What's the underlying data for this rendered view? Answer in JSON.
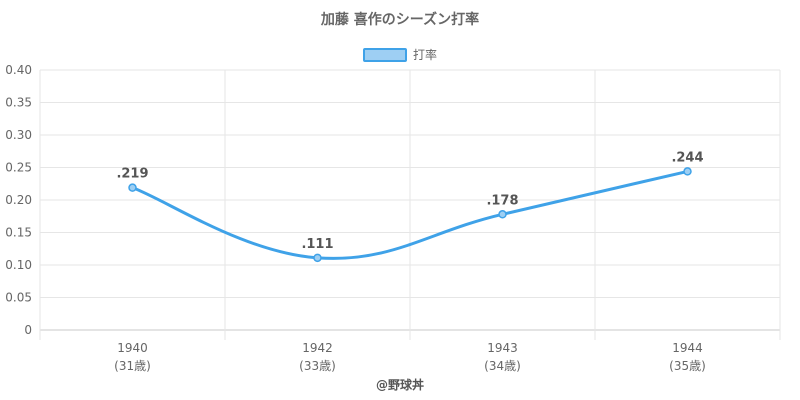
{
  "chart_data": {
    "type": "line",
    "title": "加藤 喜作のシーズン打率",
    "legend_position": "top",
    "xlabel": "@野球丼",
    "ylabel": "",
    "ylim": [
      0,
      0.4
    ],
    "y_ticks": [
      "0",
      "0.05",
      "0.10",
      "0.15",
      "0.20",
      "0.25",
      "0.30",
      "0.35",
      "0.40"
    ],
    "grid": true,
    "categories": [
      "1940",
      "1942",
      "1943",
      "1944"
    ],
    "sub_labels": [
      "(31歳)",
      "(33歳)",
      "(34歳)",
      "(35歳)"
    ],
    "series": [
      {
        "name": "打率",
        "values": [
          0.219,
          0.111,
          0.178,
          0.244
        ],
        "data_labels": [
          ".219",
          ".111",
          ".178",
          ".244"
        ],
        "color": "#3fa2e8",
        "fill": "#9ecff3"
      }
    ]
  }
}
